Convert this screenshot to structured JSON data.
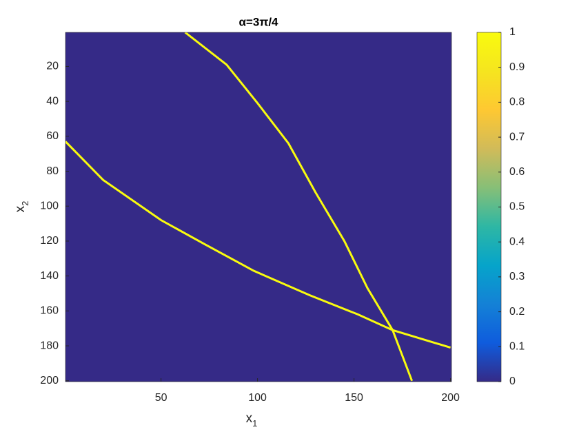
{
  "chart_data": {
    "type": "image",
    "title": "α=3π/4",
    "xlabel": {
      "text": "x",
      "sub": "1"
    },
    "ylabel": {
      "text": "x",
      "sub": "2"
    },
    "xlim": [
      0.5,
      200.5
    ],
    "ylim": [
      0.5,
      200.5
    ],
    "y_reversed": true,
    "xticks": [
      50,
      100,
      150,
      200
    ],
    "yticks": [
      20,
      40,
      60,
      80,
      100,
      120,
      140,
      160,
      180,
      200
    ],
    "background_value": 0,
    "series": [
      {
        "value": 1,
        "x": [
          62.5,
          84,
          100,
          116,
          130,
          145,
          157,
          170,
          180
        ],
        "y": [
          0.5,
          19,
          41,
          64,
          92,
          120,
          147,
          171,
          200
        ]
      },
      {
        "value": 1,
        "x": [
          0.5,
          20,
          50,
          73,
          98,
          127,
          152,
          170,
          200
        ],
        "y": [
          63,
          85,
          108,
          122,
          137,
          151,
          162,
          171,
          181
        ]
      }
    ],
    "colorbar": {
      "clim": [
        0,
        1
      ],
      "ticks": [
        0,
        0.1,
        0.2,
        0.3,
        0.4,
        0.5,
        0.6,
        0.7,
        0.8,
        0.9,
        1
      ],
      "colormap": [
        "#352a87",
        "#0f5cdd",
        "#1481d6",
        "#06a4ca",
        "#2eb7a4",
        "#87bf77",
        "#d1bb59",
        "#fec832",
        "#f5e51f",
        "#f9fb0e"
      ]
    }
  }
}
